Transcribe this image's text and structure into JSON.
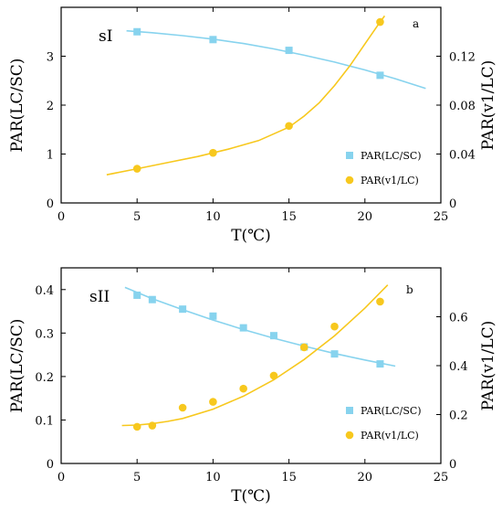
{
  "colors": {
    "square": "#87d3ee",
    "circle": "#f7c81e",
    "axis": "#000000"
  },
  "chart_data": [
    {
      "type": "scatter",
      "panel": "sI",
      "corner_label": "a",
      "xlabel": "T(℃)",
      "ylabel_left": "PAR(LC/SC)",
      "ylabel_right": "PAR(v1/LC)",
      "xlim": [
        0,
        25
      ],
      "ylim_left": [
        0,
        4
      ],
      "ylim_right": [
        0,
        0.16
      ],
      "xticks": [
        "0",
        "5",
        "10",
        "15",
        "20",
        "25"
      ],
      "yticks_left": [
        "0",
        "1",
        "2",
        "3"
      ],
      "yticks_right": [
        "0",
        "0.04",
        "0.08",
        "0.12"
      ],
      "legend_position": "lower-right",
      "series": [
        {
          "name": "PAR(LC/SC)",
          "axis": "left",
          "marker": "square",
          "x": [
            5,
            10,
            15,
            21
          ],
          "y": [
            3.5,
            3.34,
            3.12,
            2.61
          ],
          "fit": {
            "x": [
              4.3,
              6,
              8,
              10,
              12,
              14,
              16,
              18,
              20,
              22,
              24
            ],
            "y": [
              3.52,
              3.48,
              3.42,
              3.35,
              3.26,
              3.15,
              3.02,
              2.88,
              2.72,
              2.54,
              2.34
            ]
          }
        },
        {
          "name": "PAR(v1/LC)",
          "axis": "right",
          "marker": "circle",
          "x": [
            5,
            10,
            15,
            21
          ],
          "y": [
            0.028,
            0.041,
            0.063,
            0.148
          ],
          "fit": {
            "x": [
              3,
              5,
              7,
              9,
              11,
              13,
              15,
              16,
              17,
              18,
              19,
              20,
              21,
              21.3
            ],
            "y": [
              0.023,
              0.028,
              0.033,
              0.038,
              0.044,
              0.051,
              0.062,
              0.071,
              0.082,
              0.096,
              0.112,
              0.13,
              0.148,
              0.153
            ]
          }
        }
      ]
    },
    {
      "type": "scatter",
      "panel": "sII",
      "corner_label": "b",
      "xlabel": "T(℃)",
      "ylabel_left": "PAR(LC/SC)",
      "ylabel_right": "PAR(v1/LC)",
      "xlim": [
        0,
        25
      ],
      "ylim_left": [
        0,
        0.45
      ],
      "ylim_right": [
        0,
        0.8
      ],
      "xticks": [
        "0",
        "5",
        "10",
        "15",
        "20",
        "25"
      ],
      "yticks_left": [
        "0",
        "0.1",
        "0.2",
        "0.3",
        "0.4"
      ],
      "yticks_right": [
        "0",
        "0.2",
        "0.4",
        "0.6"
      ],
      "legend_position": "lower-right",
      "series": [
        {
          "name": "PAR(LC/SC)",
          "axis": "left",
          "marker": "square",
          "x": [
            5,
            6,
            8,
            10,
            12,
            14,
            16,
            18,
            21
          ],
          "y": [
            0.387,
            0.377,
            0.355,
            0.339,
            0.312,
            0.294,
            0.268,
            0.252,
            0.229
          ],
          "fit": {
            "x": [
              4.2,
              6,
              8,
              10,
              12,
              14,
              16,
              18,
              20,
              22
            ],
            "y": [
              0.405,
              0.379,
              0.354,
              0.33,
              0.308,
              0.288,
              0.27,
              0.253,
              0.238,
              0.224
            ]
          }
        },
        {
          "name": "PAR(v1/LC)",
          "axis": "right",
          "marker": "circle",
          "x": [
            5,
            6,
            8,
            10,
            12,
            14,
            16,
            18,
            21
          ],
          "y": [
            0.15,
            0.155,
            0.228,
            0.252,
            0.306,
            0.359,
            0.475,
            0.56,
            0.662
          ],
          "fit": {
            "x": [
              4,
              5,
              6,
              7,
              8,
              10,
              12,
              14,
              16,
              18,
              20,
              21.5
            ],
            "y": [
              0.155,
              0.157,
              0.163,
              0.172,
              0.184,
              0.222,
              0.275,
              0.342,
              0.425,
              0.522,
              0.635,
              0.73
            ]
          }
        }
      ]
    }
  ]
}
